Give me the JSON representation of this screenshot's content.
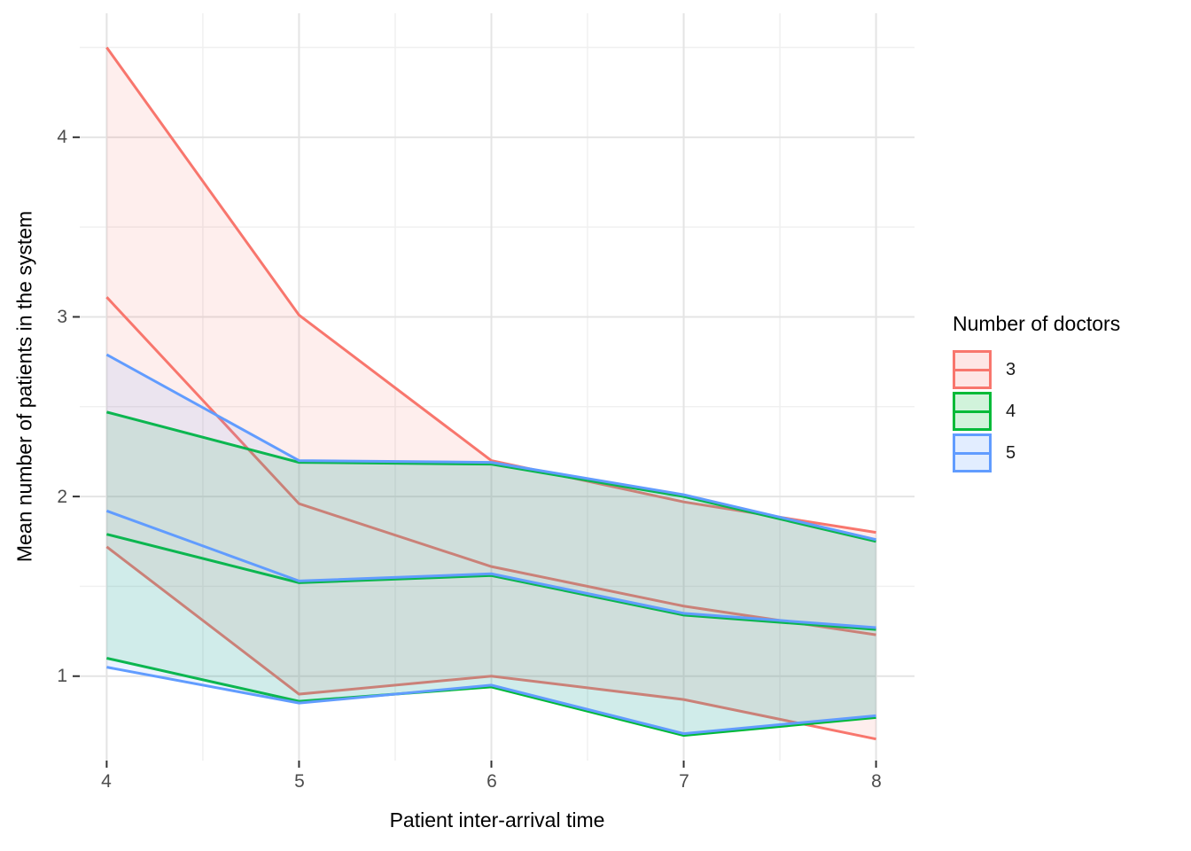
{
  "chart_data": {
    "type": "area",
    "subtype": "ribbon-with-mean-lines",
    "xlabel": "Patient inter-arrival time",
    "ylabel": "Mean number of patients in the system",
    "x": [
      4,
      5,
      6,
      7,
      8
    ],
    "x_ticks": [
      4,
      5,
      6,
      7,
      8
    ],
    "y_ticks": [
      1,
      2,
      3,
      4
    ],
    "x_minor_ticks": [
      4.5,
      5.5,
      6.5,
      7.5
    ],
    "y_minor_ticks": [
      1.5,
      2.5,
      3.5,
      4.5
    ],
    "x_tick_labels": [
      "4",
      "5",
      "6",
      "7",
      "8"
    ],
    "y_tick_labels": [
      "1",
      "2",
      "3",
      "4"
    ],
    "xlim": [
      3.86,
      8.2
    ],
    "ylim": [
      0.53,
      4.69
    ],
    "grid": "on",
    "legend_position": "right",
    "fill_alpha": 0.12,
    "series": [
      {
        "name": "3",
        "color": "#F8766D",
        "mean": [
          3.11,
          1.96,
          1.61,
          1.39,
          1.23
        ],
        "lower": [
          1.72,
          0.9,
          1.0,
          0.87,
          0.65
        ],
        "upper": [
          4.5,
          3.01,
          2.2,
          1.97,
          1.8
        ]
      },
      {
        "name": "4",
        "color": "#00BA38",
        "mean": [
          1.79,
          1.52,
          1.56,
          1.34,
          1.26
        ],
        "lower": [
          1.1,
          0.86,
          0.94,
          0.67,
          0.77
        ],
        "upper": [
          2.47,
          2.19,
          2.18,
          2.0,
          1.75
        ]
      },
      {
        "name": "5",
        "color": "#619CFF",
        "mean": [
          1.92,
          1.53,
          1.57,
          1.35,
          1.27
        ],
        "lower": [
          1.05,
          0.85,
          0.95,
          0.68,
          0.78
        ],
        "upper": [
          2.79,
          2.2,
          2.19,
          2.01,
          1.76
        ]
      }
    ]
  },
  "legend": {
    "title": "Number of doctors",
    "entries": [
      {
        "label": "3",
        "color": "#F8766D"
      },
      {
        "label": "4",
        "color": "#00BA38"
      },
      {
        "label": "5",
        "color": "#619CFF"
      }
    ]
  },
  "style_colors": {
    "background": "#FFFFFF",
    "grid_major": "#E4E4E4",
    "grid_minor": "#F0F0F0",
    "tick_mark": "#333333",
    "tick_label": "#4D4D4D",
    "axis_title": "#000000"
  }
}
